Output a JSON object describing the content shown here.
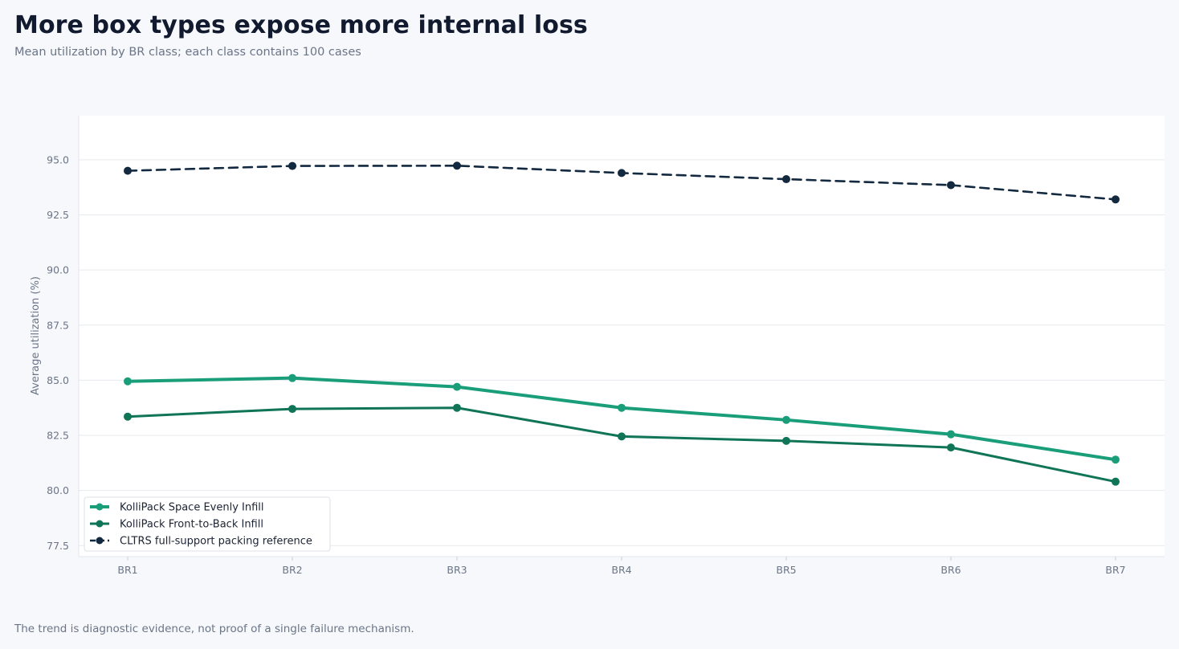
{
  "header": {
    "title": "More box types expose more internal loss",
    "subtitle": "Mean utilization by BR class; each class contains 100 cases"
  },
  "footer": {
    "note": "The trend is diagnostic evidence, not proof of a single failure mechanism."
  },
  "chart_data": {
    "type": "line",
    "title": "More box types expose more internal loss",
    "subtitle": "Mean utilization by BR class; each class contains 100 cases",
    "xlabel": "",
    "ylabel": "Average utilization (%)",
    "categories": [
      "BR1",
      "BR2",
      "BR3",
      "BR4",
      "BR5",
      "BR6",
      "BR7"
    ],
    "yticks": [
      "77.5",
      "80.0",
      "82.5",
      "85.0",
      "87.5",
      "90.0",
      "92.5",
      "95.0"
    ],
    "ylim": [
      77,
      97
    ],
    "grid": "horizontal",
    "legend_position": "lower-left",
    "series": [
      {
        "name": "KolliPack Space Evenly Infill",
        "values": [
          84.95,
          85.1,
          84.7,
          83.75,
          83.2,
          82.55,
          81.4
        ],
        "color": "#1a9e7a",
        "style": "solid-thick"
      },
      {
        "name": "KolliPack Front-to-Back Infill",
        "values": [
          83.35,
          83.7,
          83.75,
          82.45,
          82.25,
          81.95,
          80.4
        ],
        "color": "#0f7556",
        "style": "solid"
      },
      {
        "name": "CLTRS full-support packing reference",
        "values": [
          94.5,
          94.72,
          94.73,
          94.4,
          94.12,
          93.85,
          93.2
        ],
        "color": "#13293f",
        "style": "dashed"
      }
    ]
  }
}
